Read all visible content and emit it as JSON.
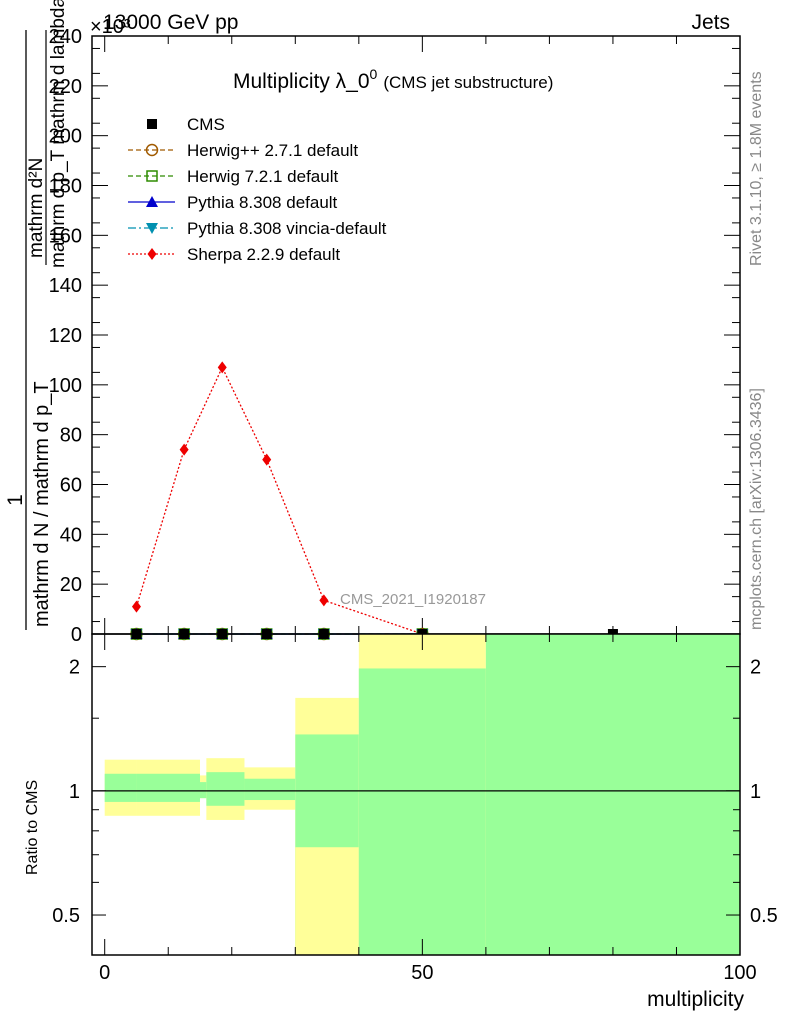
{
  "header": {
    "left_label": "13000 GeV pp",
    "right_label": "Jets",
    "exponent_label": "×10³"
  },
  "side_labels": {
    "rivet": "Rivet 3.1.10, ≥ 1.8M events",
    "mcplots": "mcplots.cern.ch [arXiv:1306.3436]"
  },
  "chart_data": [
    {
      "type": "line",
      "panel": "main",
      "title_main": "Multiplicity λ_0",
      "title_sup": "0",
      "title_sub": "(CMS jet substructure)",
      "analysis_label": "CMS_2021_I1920187",
      "ylabel_numerator": "1",
      "ylabel_denominator": "mathrm d N / mathrm d p_T",
      "ylabel_fraction_top": "mathrm d²N",
      "ylabel_fraction_bottom": "mathrm d p_T mathrm d lambda",
      "ylim": [
        0,
        240000
      ],
      "y_ticks": [
        {
          "value": 0,
          "label": "0"
        },
        {
          "value": 20000,
          "label": "20"
        },
        {
          "value": 40000,
          "label": "40"
        },
        {
          "value": 60000,
          "label": "60"
        },
        {
          "value": 80000,
          "label": "80"
        },
        {
          "value": 100000,
          "label": "100"
        },
        {
          "value": 120000,
          "label": "120"
        },
        {
          "value": 140000,
          "label": "140"
        },
        {
          "value": 160000,
          "label": "160"
        },
        {
          "value": 180000,
          "label": "180"
        },
        {
          "value": 200000,
          "label": "200"
        },
        {
          "value": 220000,
          "label": "220"
        },
        {
          "value": 240000,
          "label": "240"
        }
      ],
      "xlim": [
        -2,
        100
      ],
      "legend_position": "top-left",
      "series": [
        {
          "name": "CMS",
          "color": "#000000",
          "marker": "square",
          "x": [
            5,
            12.5,
            18.5,
            25.5,
            34.5,
            50,
            80
          ],
          "y": [
            0,
            0,
            0,
            0,
            0,
            0,
            0
          ]
        },
        {
          "name": "Herwig++ 2.7.1 default",
          "color": "#a05a00",
          "marker": "circle-open",
          "dash": "5,3",
          "x": [
            5,
            12.5,
            18.5,
            25.5,
            34.5,
            50
          ],
          "y": [
            0,
            0,
            0,
            0,
            0,
            0
          ]
        },
        {
          "name": "Herwig 7.2.1 default",
          "color": "#2e8b00",
          "marker": "square-open",
          "dash": "5,3",
          "x": [
            5,
            12.5,
            18.5,
            25.5,
            34.5,
            50
          ],
          "y": [
            0,
            0,
            0,
            0,
            0,
            0
          ]
        },
        {
          "name": "Pythia 8.308 default",
          "color": "#0000cc",
          "marker": "triangle-up",
          "dash": "",
          "x": [
            5,
            12.5,
            18.5,
            25.5,
            34.5,
            50
          ],
          "y": [
            0,
            0,
            0,
            0,
            0,
            0
          ]
        },
        {
          "name": "Pythia 8.308 vincia-default",
          "color": "#0090b0",
          "marker": "triangle-down",
          "dash": "8,3,2,3",
          "x": [
            5,
            12.5,
            18.5,
            25.5,
            34.5,
            50
          ],
          "y": [
            0,
            0,
            0,
            0,
            0,
            0
          ]
        },
        {
          "name": "Sherpa 2.2.9 default",
          "color": "#ee0000",
          "marker": "diamond",
          "dash": "2,2",
          "x": [
            5,
            12.5,
            18.5,
            25.5,
            34.5,
            50
          ],
          "y": [
            11000,
            74000,
            107000,
            70000,
            13500,
            0
          ]
        }
      ]
    },
    {
      "type": "area",
      "panel": "ratio",
      "ylabel": "Ratio to CMS",
      "xlabel": "multiplicity",
      "xlim": [
        -2,
        100
      ],
      "ylim_log": [
        0.4,
        2.4
      ],
      "x_ticks": [
        {
          "value": 0,
          "label": "0"
        },
        {
          "value": 50,
          "label": "50"
        },
        {
          "value": 100,
          "label": "100"
        }
      ],
      "y_ticks": [
        {
          "value": 0.5,
          "label": "0.5"
        },
        {
          "value": 1,
          "label": "1"
        },
        {
          "value": 2,
          "label": "2"
        }
      ],
      "band_colors": {
        "total": "#ffff99",
        "stat": "#99ff99"
      },
      "bins": [
        {
          "x0": 0,
          "x1": 5,
          "stat": [
            0.94,
            1.1
          ],
          "total": [
            0.87,
            1.19
          ]
        },
        {
          "x0": 5,
          "x1": 15,
          "stat": [
            0.94,
            1.1
          ],
          "total": [
            0.87,
            1.19
          ]
        },
        {
          "x0": 15,
          "x1": 16,
          "stat": [
            0.96,
            1.05
          ],
          "total": [
            0.96,
            1.09
          ]
        },
        {
          "x0": 16,
          "x1": 22,
          "stat": [
            0.92,
            1.11
          ],
          "total": [
            0.85,
            1.2
          ]
        },
        {
          "x0": 22,
          "x1": 30,
          "stat": [
            0.95,
            1.07
          ],
          "total": [
            0.9,
            1.14
          ]
        },
        {
          "x0": 30,
          "x1": 40,
          "stat": [
            0.4,
            1.37
          ],
          "total": [
            0.4,
            1.68
          ],
          "total_low_gap": [
            0.4,
            0.73
          ]
        },
        {
          "x0": 40,
          "x1": 60,
          "stat": [
            0.4,
            1.98
          ],
          "total": [
            0.4,
            2.4
          ]
        },
        {
          "x0": 60,
          "x1": 100,
          "stat": [
            0.4,
            2.4
          ],
          "total": [
            0.4,
            2.4
          ]
        }
      ]
    }
  ]
}
